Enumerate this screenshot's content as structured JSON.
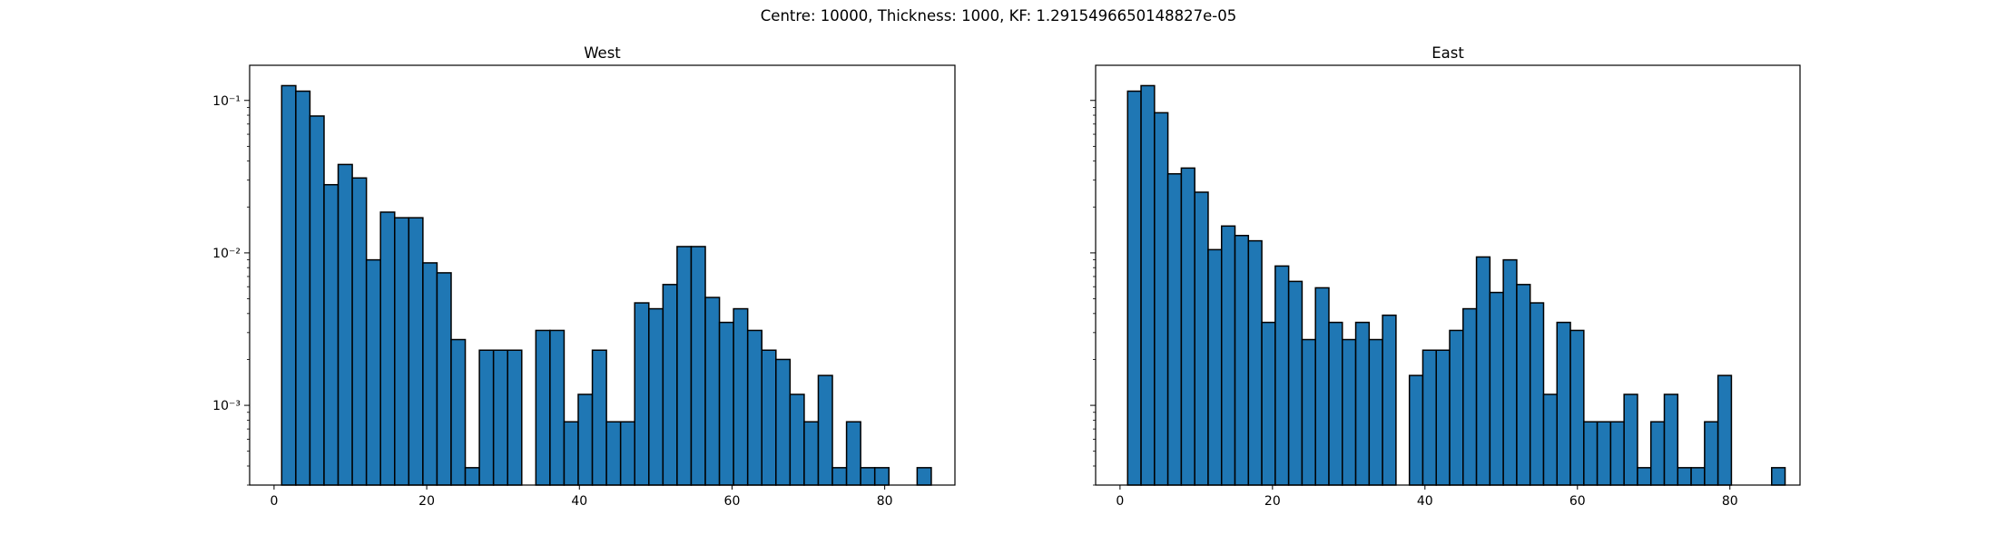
{
  "suptitle": "Centre: 10000, Thickness: 1000, KF: 1.2915496650148827e-05",
  "chart_data": [
    {
      "type": "bar",
      "title": "West",
      "xlabel": "",
      "ylabel": "",
      "yscale": "log",
      "xlim": [
        -3.2,
        89.2
      ],
      "ylim": [
        0.0003,
        0.17
      ],
      "xticks": [
        0,
        20,
        40,
        60,
        80
      ],
      "yticks": [
        {
          "value": 0.001,
          "label": "10⁻³"
        },
        {
          "value": 0.01,
          "label": "10⁻²"
        },
        {
          "value": 0.1,
          "label": "10⁻¹"
        }
      ],
      "bin_start": 1,
      "bin_width": 1.85,
      "values": [
        0.125,
        0.115,
        0.079,
        0.028,
        0.038,
        0.031,
        0.009,
        0.0185,
        0.017,
        0.017,
        0.0086,
        0.0074,
        0.0027,
        0.00039,
        0.0023,
        0.0023,
        0.0023,
        0,
        0.0031,
        0.0031,
        0.00078,
        0.00118,
        0.0023,
        0.00078,
        0.00078,
        0.0047,
        0.0043,
        0.0062,
        0.011,
        0.011,
        0.0051,
        0.0035,
        0.0043,
        0.0031,
        0.0023,
        0.002,
        0.00118,
        0.00078,
        0.00157,
        0.00039,
        0.00078,
        0.00039,
        0.00039,
        0,
        0,
        0.00039,
        0
      ],
      "bar_color": "#1f77b4",
      "edge_color": "#000000",
      "grid": false
    },
    {
      "type": "bar",
      "title": "East",
      "xlabel": "",
      "ylabel": "",
      "yscale": "log",
      "xlim": [
        -3.2,
        89.2
      ],
      "ylim": [
        0.0003,
        0.17
      ],
      "xticks": [
        0,
        20,
        40,
        60,
        80
      ],
      "yticks": [],
      "bin_start": 1,
      "bin_width": 1.76,
      "values": [
        0.115,
        0.125,
        0.083,
        0.033,
        0.036,
        0.025,
        0.0105,
        0.015,
        0.013,
        0.012,
        0.0035,
        0.0082,
        0.0065,
        0.0027,
        0.0059,
        0.0035,
        0.0027,
        0.0035,
        0.0027,
        0.0039,
        0,
        0.00157,
        0.0023,
        0.0023,
        0.0031,
        0.0043,
        0.0094,
        0.0055,
        0.009,
        0.0062,
        0.0047,
        0.00118,
        0.0035,
        0.0031,
        0.00078,
        0.00078,
        0.00078,
        0.00118,
        0.00039,
        0.00078,
        0.00118,
        0.00039,
        0.00039,
        0.00078,
        0.00157,
        0,
        0,
        0,
        0.00039
      ],
      "bar_color": "#1f77b4",
      "edge_color": "#000000",
      "grid": false
    }
  ]
}
